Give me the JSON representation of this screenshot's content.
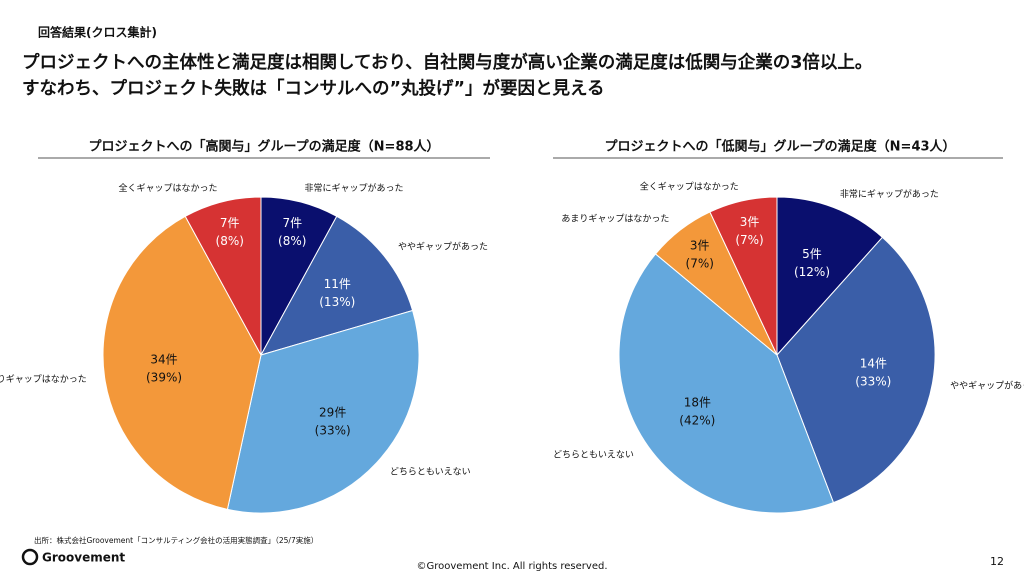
{
  "header": {
    "label": "回答結果(クロス集計)",
    "headline": [
      "プロジェクトへの主体性と満足度は相関しており、自社関与度が高い企業の満足度は低関与企業の3倍以上。",
      "すなわち、プロジェクト失敗は「コンサルへの”丸投げ”」が要因と見える"
    ]
  },
  "chart_data": [
    {
      "type": "pie",
      "title": "プロジェクトへの「高関与」グループの満足度（N=88人）",
      "categories": [
        "非常にギャップがあった",
        "ややギャップがあった",
        "どちらともいえない",
        "あまりギャップはなかった",
        "全くギャップはなかった"
      ],
      "values": [
        7,
        11,
        29,
        34,
        7
      ],
      "value_labels": [
        "7件",
        "11件",
        "29件",
        "34件",
        "7件"
      ],
      "percent_labels": [
        "(8%)",
        "(13%)",
        "(33%)",
        "(39%)",
        "(8%)"
      ],
      "colors": [
        "#0a0f6e",
        "#3a5ea8",
        "#64a8dd",
        "#f3983a",
        "#d63333"
      ]
    },
    {
      "type": "pie",
      "title": "プロジェクトへの「低関与」グループの満足度（N=43人）",
      "categories": [
        "非常にギャップがあった",
        "ややギャップがあった",
        "どちらともいえない",
        "あまりギャップはなかった",
        "全くギャップはなかった"
      ],
      "values": [
        5,
        14,
        18,
        3,
        3
      ],
      "value_labels": [
        "5件",
        "14件",
        "18件",
        "3件",
        "3件"
      ],
      "percent_labels": [
        "(12%)",
        "(33%)",
        "(42%)",
        "(7%)",
        "(7%)"
      ],
      "colors": [
        "#0a0f6e",
        "#3a5ea8",
        "#64a8dd",
        "#f3983a",
        "#d63333"
      ]
    }
  ],
  "footer": {
    "source": "出所：株式会社Groovement「コンサルティング会社の活用実態調査」（25/7実施）",
    "logo": "Groovement",
    "copyright": "©Groovement Inc. All rights reserved.",
    "page": "12"
  }
}
